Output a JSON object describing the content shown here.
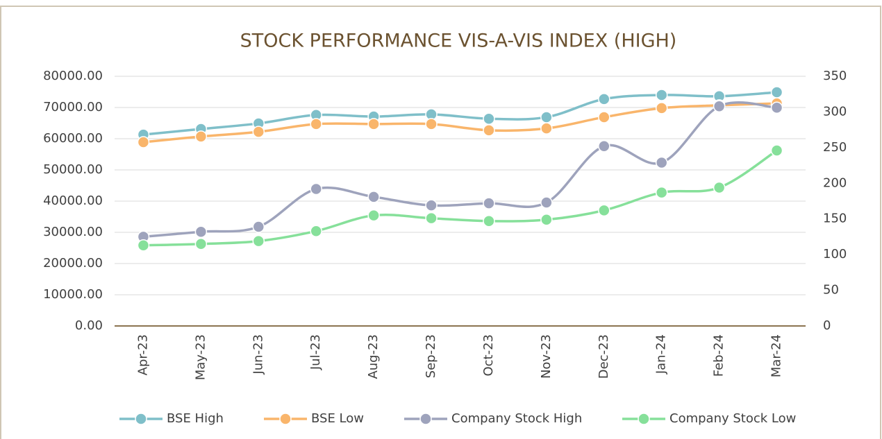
{
  "chart_data": {
    "type": "line",
    "title": "STOCK PERFORMANCE VIS-A-VIS INDEX (HIGH)",
    "categories": [
      "Apr-23",
      "May-23",
      "Jun-23",
      "Jul-23",
      "Aug-23",
      "Sep-23",
      "Oct-23",
      "Nov-23",
      "Dec-23",
      "Jan-24",
      "Feb-24",
      "Mar-24"
    ],
    "series": [
      {
        "name": "BSE High",
        "color": "#7fbfc9",
        "values": [
          61300,
          63100,
          64900,
          67600,
          67100,
          67800,
          66400,
          66900,
          72700,
          74000,
          73600,
          74900
        ]
      },
      {
        "name": "BSE Low",
        "color": "#f9b56b",
        "values": [
          58900,
          60700,
          62200,
          64700,
          64700,
          64700,
          62700,
          63300,
          66900,
          69800,
          70700,
          71300
        ]
      },
      {
        "name": "Company Stock High",
        "color": "#9ea3bc",
        "axis": "y2",
        "values": [
          125,
          132,
          139,
          192,
          181,
          169,
          172,
          173,
          252,
          229,
          308,
          306
        ]
      },
      {
        "name": "Company Stock Low",
        "color": "#86e09a",
        "axis": "y2",
        "values": [
          113,
          115,
          119,
          133,
          155,
          151,
          147,
          149,
          162,
          187,
          194,
          246
        ]
      }
    ],
    "ylim": [
      0,
      80000
    ],
    "yticks": [
      {
        "value": 0,
        "label": "0.00"
      },
      {
        "value": 10000,
        "label": "10000.00"
      },
      {
        "value": 20000,
        "label": "20000.00"
      },
      {
        "value": 30000,
        "label": "30000.00"
      },
      {
        "value": 40000,
        "label": "40000.00"
      },
      {
        "value": 50000,
        "label": "50000.00"
      },
      {
        "value": 60000,
        "label": "60000.00"
      },
      {
        "value": 70000,
        "label": "70000.00"
      },
      {
        "value": 80000,
        "label": "80000.00"
      }
    ],
    "y2lim": [
      0,
      350
    ],
    "y2ticks": [
      0,
      50,
      100,
      150,
      200,
      250,
      300,
      350
    ],
    "grid": true
  }
}
